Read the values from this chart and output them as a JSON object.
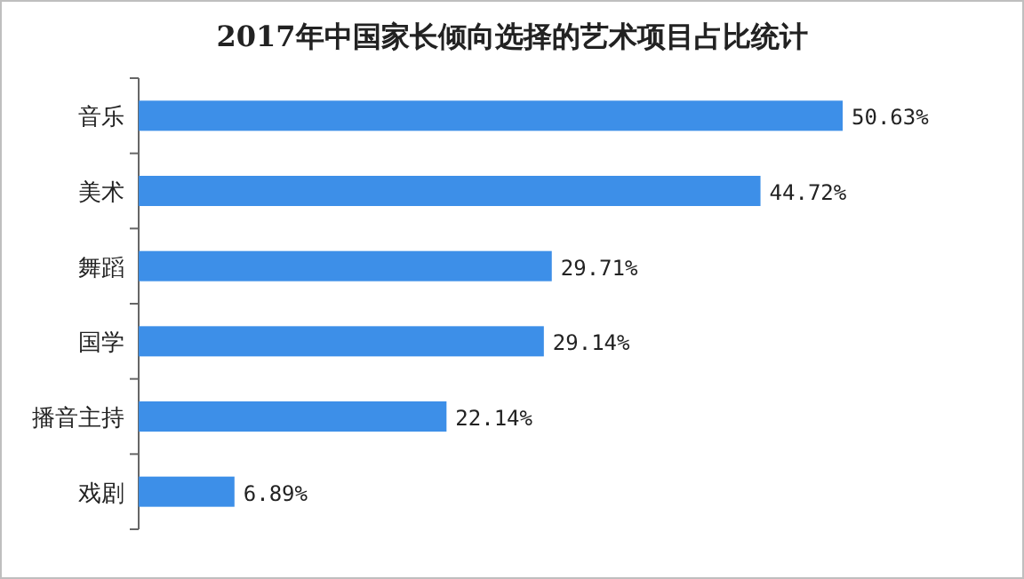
{
  "chart_data": {
    "type": "bar",
    "orientation": "horizontal",
    "title": "2017年中国家长倾向选择的艺术项目占比统计",
    "categories": [
      "音乐",
      "美术",
      "舞蹈",
      "国学",
      "播音主持",
      "戏剧"
    ],
    "values": [
      50.63,
      44.72,
      29.71,
      29.14,
      22.14,
      6.89
    ],
    "value_labels": [
      "50.63%",
      "44.72%",
      "29.71%",
      "29.14%",
      "22.14%",
      "6.89%"
    ],
    "color": "#3d8fe8"
  }
}
